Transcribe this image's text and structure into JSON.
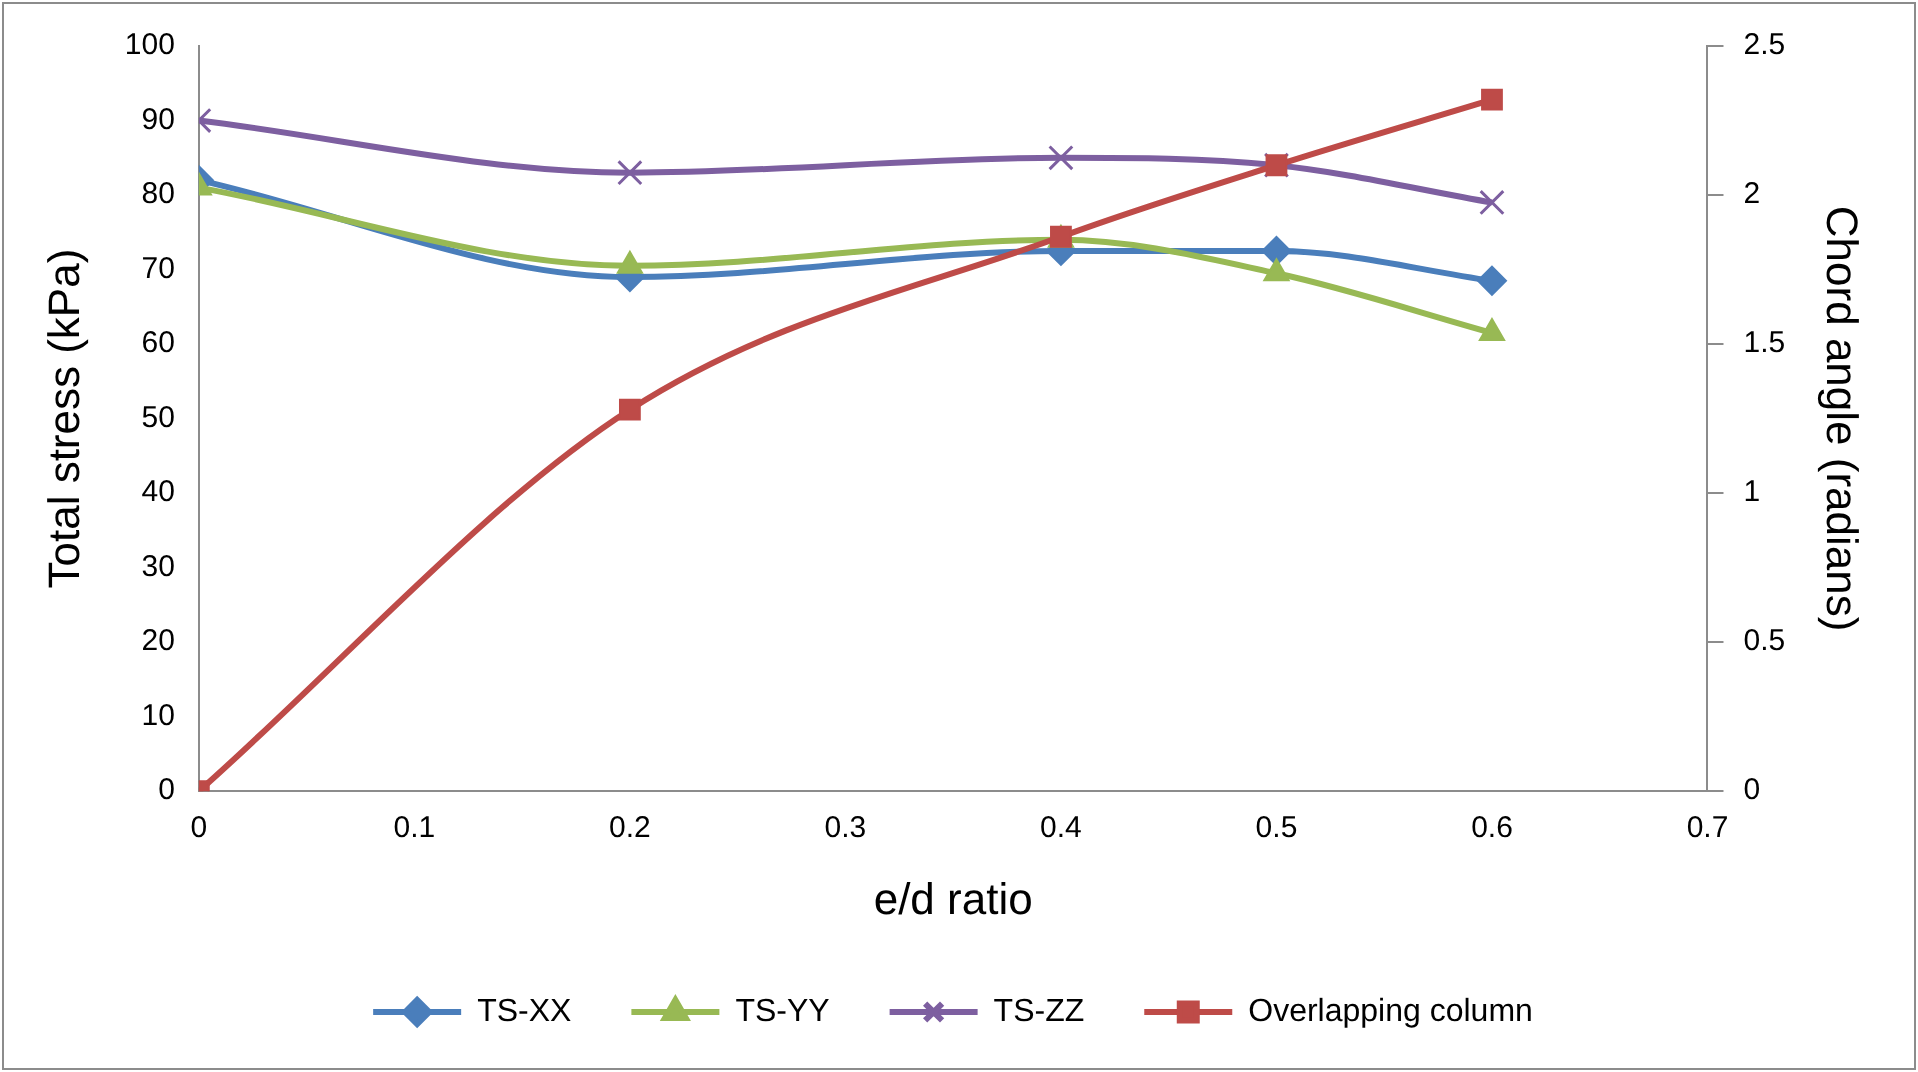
{
  "chart_data": {
    "type": "line",
    "xlabel": "e/d ratio",
    "ylabel": "Total stress (kPa)",
    "y2label": "Chord angle (radians)",
    "x": [
      0,
      0.2,
      0.4,
      0.5,
      0.6
    ],
    "series": [
      {
        "name": "TS-XX",
        "color": "#4a7ebb",
        "marker": "diamond",
        "values": [
          82,
          69,
          72.5,
          72.5,
          68.5
        ]
      },
      {
        "name": "TS-YY",
        "color": "#98b954",
        "marker": "triangle",
        "values": [
          81,
          70.5,
          74,
          69.5,
          61.5
        ]
      },
      {
        "name": "TS-ZZ",
        "color": "#7d5fa0",
        "marker": "cross",
        "values": [
          90,
          83,
          85,
          84,
          79
        ]
      },
      {
        "name": "Overlapping column",
        "color": "#be4b48",
        "marker": "square",
        "axis": "y2",
        "values": [
          0,
          1.28,
          1.86,
          2.1,
          2.32
        ]
      }
    ],
    "xlim": [
      0,
      0.7
    ],
    "xticks": [
      0,
      0.1,
      0.2,
      0.3,
      0.4,
      0.5,
      0.6,
      0.7
    ],
    "ylim": [
      0,
      100
    ],
    "yticks": [
      0,
      10,
      20,
      30,
      40,
      50,
      60,
      70,
      80,
      90,
      100
    ],
    "y2lim": [
      0,
      2.5
    ],
    "y2ticks": [
      0,
      0.5,
      1,
      1.5,
      2,
      2.5
    ],
    "grid": false,
    "legend": "bottom"
  }
}
